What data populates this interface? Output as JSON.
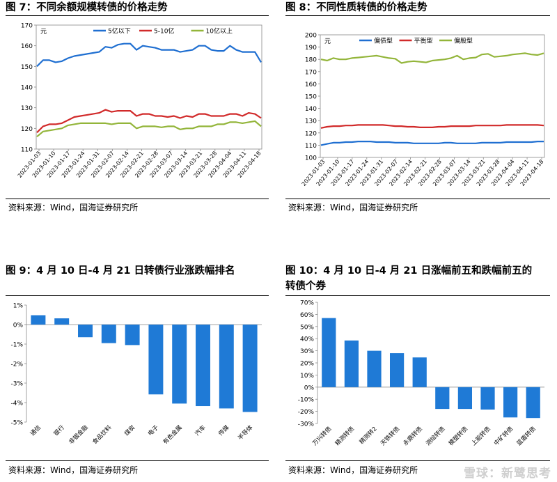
{
  "fig7": {
    "title": "图 7：不同余额规模转债的价格走势",
    "source": "资料来源：Wind，国海证券研究所",
    "chart_data": {
      "type": "line",
      "unit_label": "元",
      "ylim": [
        110,
        170
      ],
      "yticks": [
        "110",
        "120",
        "130",
        "140",
        "150",
        "160",
        "170"
      ],
      "xtick_labels": [
        "2023-01-03",
        "2023-01-10",
        "2023-01-17",
        "2023-01-24",
        "2023-01-31",
        "2023-02-07",
        "2023-02-14",
        "2023-02-21",
        "2023-02-28",
        "2023-03-07",
        "2023-03-14",
        "2023-03-21",
        "2023-03-28",
        "2023-04-04",
        "2023-04-11",
        "2023-04-18"
      ],
      "legend_position": "top",
      "series": [
        {
          "name": "5亿以下",
          "color": "#1f6fd1",
          "values": [
            150,
            153,
            153,
            152,
            152.5,
            154,
            155,
            155.5,
            156,
            156.5,
            157,
            159.5,
            159,
            160.5,
            161,
            161,
            158,
            160,
            159.5,
            159,
            158,
            158,
            158,
            157,
            157.5,
            158,
            160,
            160,
            158,
            157.5,
            157.5,
            160,
            158,
            157,
            157,
            157,
            152
          ]
        },
        {
          "name": "5-10亿",
          "color": "#d12a2a",
          "values": [
            118,
            121,
            122,
            122,
            122.5,
            124,
            125.5,
            126,
            126.5,
            127,
            127.5,
            129,
            128,
            128.5,
            128.5,
            128.5,
            126,
            127,
            127,
            126,
            126,
            125.5,
            126,
            125,
            126,
            125.5,
            127,
            127,
            126,
            126,
            126,
            127,
            127,
            126,
            127.5,
            127,
            125
          ]
        },
        {
          "name": "10亿以上",
          "color": "#93b53a",
          "values": [
            116,
            118.5,
            119,
            119.5,
            120,
            121.5,
            122,
            122.5,
            122.5,
            122.5,
            122.5,
            122.5,
            122,
            122.5,
            122.5,
            122.5,
            120,
            121,
            121,
            121,
            120.5,
            121,
            121,
            119.5,
            120,
            120,
            121,
            121,
            121,
            122,
            122,
            123,
            123,
            122.5,
            123,
            123.5,
            121
          ]
        }
      ]
    }
  },
  "fig8": {
    "title": "图 8：不同性质转债的价格走势",
    "source": "资料来源：Wind，国海证券研究所",
    "chart_data": {
      "type": "line",
      "unit_label": "元",
      "ylim": [
        100,
        200
      ],
      "yticks": [
        "100",
        "110",
        "120",
        "130",
        "140",
        "150",
        "160",
        "170",
        "180",
        "190",
        "200"
      ],
      "xtick_labels": [
        "2023-01-03",
        "2023-01-10",
        "2023-01-17",
        "2023-01-24",
        "2023-01-31",
        "2023-02-07",
        "2023-02-14",
        "2023-02-21",
        "2023-02-28",
        "2023-03-07",
        "2023-03-14",
        "2023-03-21",
        "2023-03-28",
        "2023-04-04",
        "2023-04-11",
        "2023-04-18"
      ],
      "legend_position": "top",
      "series": [
        {
          "name": "偏债型",
          "color": "#1f6fd1",
          "values": [
            110,
            111,
            112,
            112,
            112.5,
            112.5,
            113,
            113,
            113,
            112.5,
            112.5,
            112.5,
            112,
            112,
            112,
            111.5,
            111.5,
            111.5,
            111.5,
            111.5,
            112,
            112,
            111.5,
            111.5,
            111.5,
            111.5,
            112,
            112,
            112,
            112,
            112.5,
            112.5,
            112.5,
            112.5,
            112.5,
            113,
            113
          ]
        },
        {
          "name": "平衡型",
          "color": "#d12a2a",
          "values": [
            124,
            125,
            125.5,
            125.5,
            126,
            126,
            126.5,
            126.5,
            126.5,
            126.5,
            126.5,
            126,
            125.5,
            125.5,
            125,
            125,
            124.5,
            124.5,
            124.5,
            125,
            125,
            125.5,
            125.5,
            125.5,
            125.5,
            126,
            126,
            126,
            126,
            126,
            126.5,
            126.5,
            126.5,
            126.5,
            126.5,
            126.5,
            126
          ]
        },
        {
          "name": "偏股型",
          "color": "#93b53a",
          "values": [
            180,
            179,
            181,
            180,
            180,
            181,
            181.5,
            182,
            182.5,
            183,
            182,
            181,
            180.5,
            177,
            178,
            178.5,
            178,
            177.5,
            179,
            179.5,
            180,
            181,
            183,
            180,
            181,
            181.5,
            184,
            184.5,
            182,
            182.5,
            183,
            184,
            184.5,
            185,
            184,
            183.5,
            185
          ]
        }
      ]
    }
  },
  "fig9": {
    "title": "图 9：4 月 10 日-4 月 21 日转债行业涨跌幅排名",
    "source": "资料来源：Wind，国海证券研究所",
    "chart_data": {
      "type": "bar",
      "ylim": [
        -5,
        1
      ],
      "yticks": [
        "1%",
        "0%",
        "-1%",
        "-2%",
        "-3%",
        "-4%",
        "-5%"
      ],
      "bar_color": "#1f7ad6",
      "categories": [
        "通信",
        "银行",
        "非银金融",
        "食品饮料",
        "煤炭",
        "电子",
        "有色金属",
        "汽车",
        "传媒",
        "半导体"
      ],
      "values": [
        0.48,
        0.32,
        -0.65,
        -0.95,
        -1.05,
        -3.58,
        -4.05,
        -4.18,
        -4.3,
        -4.48
      ]
    }
  },
  "fig10": {
    "title_line1": "图 10：4 月 10 日-4 月 21 日涨幅前五和跌幅前五的",
    "title_line2": "转债个券",
    "source": "资料来源：Wind，国海证券研究所",
    "watermark": "雪球：新鹭思考",
    "chart_data": {
      "type": "bar",
      "ylim": [
        -30,
        70
      ],
      "yticks": [
        "70%",
        "60%",
        "50%",
        "40%",
        "30%",
        "20%",
        "10%",
        "0%",
        "-10%",
        "-20%",
        "-30%"
      ],
      "bar_color": "#1f7ad6",
      "categories": [
        "万兴转债",
        "精测转债",
        "精测转2",
        "天铁转债",
        "永鼎转债",
        "测绘转债",
        "模塑转债",
        "上能转债",
        "中矿转债",
        "蓝盾转债"
      ],
      "values": [
        57,
        38.5,
        30,
        28,
        24.5,
        -18,
        -18,
        -18.5,
        -25,
        -25.5
      ]
    }
  }
}
